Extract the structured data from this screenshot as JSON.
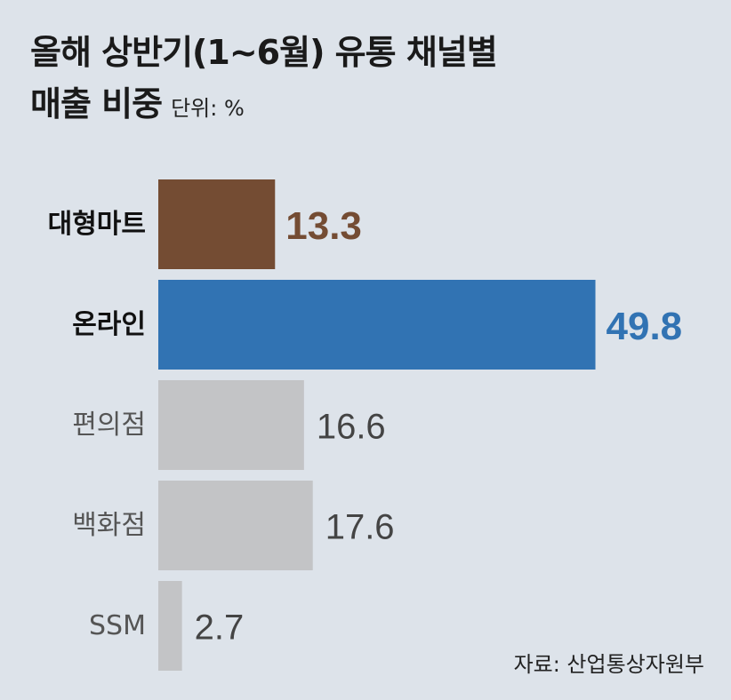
{
  "title_line1": "올해 상반기(1~6월) 유통 채널별",
  "title_line2": "매출 비중",
  "unit": "단위: %",
  "source": "자료: 산업통상자원부",
  "colors": {
    "highlight_brown": "#744c33",
    "highlight_blue": "#3173b3",
    "neutral_bar": "#c3c4c6",
    "highlight_label": "#111111",
    "neutral_label": "#555555"
  },
  "chart_data": {
    "type": "bar",
    "orientation": "horizontal",
    "categories": [
      "대형마트",
      "온라인",
      "편의점",
      "백화점",
      "SSM"
    ],
    "values": [
      13.3,
      49.8,
      16.6,
      17.6,
      2.7
    ],
    "value_labels": [
      "13.3",
      "49.8",
      "16.6",
      "17.6",
      "2.7"
    ],
    "bar_colors": [
      "#744c33",
      "#3173b3",
      "#c3c4c6",
      "#c3c4c6",
      "#c3c4c6"
    ],
    "value_label_colors": [
      "#744c33",
      "#3173b3",
      "#444444",
      "#444444",
      "#444444"
    ],
    "highlighted": [
      true,
      true,
      false,
      false,
      false
    ],
    "title": "올해 상반기(1~6월) 유통 채널별 매출 비중",
    "xlabel": "",
    "ylabel": "",
    "unit": "%",
    "legend": "none",
    "grid": false
  }
}
